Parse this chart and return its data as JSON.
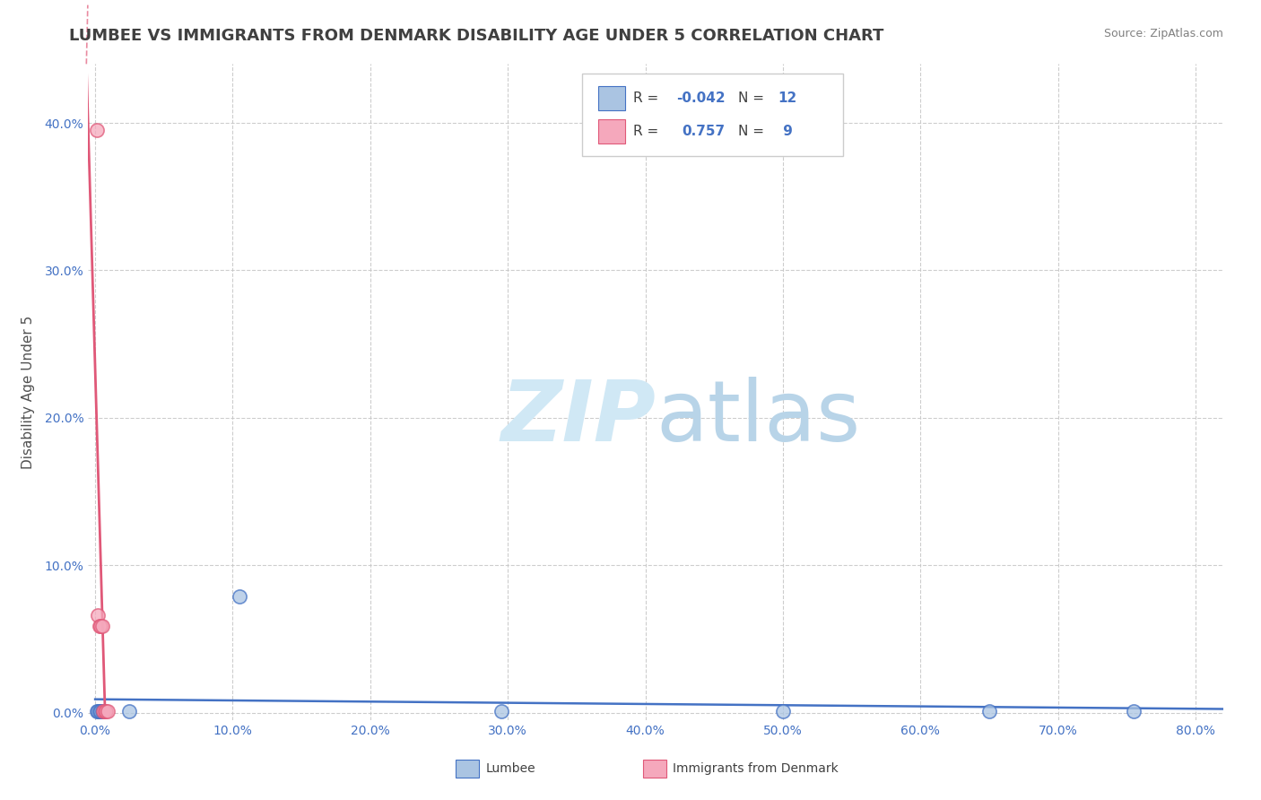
{
  "title": "LUMBEE VS IMMIGRANTS FROM DENMARK DISABILITY AGE UNDER 5 CORRELATION CHART",
  "source": "Source: ZipAtlas.com",
  "ylabel": "Disability Age Under 5",
  "xlim": [
    -0.005,
    0.82
  ],
  "ylim": [
    -0.005,
    0.44
  ],
  "xticks": [
    0.0,
    0.1,
    0.2,
    0.3,
    0.4,
    0.5,
    0.6,
    0.7,
    0.8
  ],
  "xticklabels": [
    "0.0%",
    "10.0%",
    "20.0%",
    "30.0%",
    "40.0%",
    "50.0%",
    "60.0%",
    "70.0%",
    "80.0%"
  ],
  "yticks": [
    0.0,
    0.1,
    0.2,
    0.3,
    0.4
  ],
  "yticklabels": [
    "0.0%",
    "10.0%",
    "20.0%",
    "30.0%",
    "40.0%"
  ],
  "lumbee_x": [
    0.001,
    0.002,
    0.003,
    0.004,
    0.005,
    0.006,
    0.025,
    0.105,
    0.295,
    0.5,
    0.65,
    0.755
  ],
  "lumbee_y": [
    0.001,
    0.001,
    0.001,
    0.001,
    0.001,
    0.001,
    0.001,
    0.079,
    0.001,
    0.001,
    0.001,
    0.001
  ],
  "denmark_x": [
    0.001,
    0.002,
    0.003,
    0.004,
    0.005,
    0.006,
    0.007,
    0.008,
    0.009
  ],
  "denmark_y": [
    0.395,
    0.066,
    0.059,
    0.059,
    0.059,
    0.001,
    0.001,
    0.001,
    0.001
  ],
  "lumbee_color": "#aac4e2",
  "denmark_color": "#f5a8bc",
  "lumbee_line_color": "#4472c4",
  "denmark_line_color": "#e05878",
  "lumbee_R": -0.042,
  "lumbee_N": 12,
  "denmark_R": 0.757,
  "denmark_N": 9,
  "background_color": "#ffffff",
  "grid_color": "#c8c8c8",
  "title_color": "#404040",
  "watermark_color": "#d0e8f5",
  "title_fontsize": 13,
  "axis_fontsize": 11,
  "tick_fontsize": 10,
  "marker_size": 120
}
